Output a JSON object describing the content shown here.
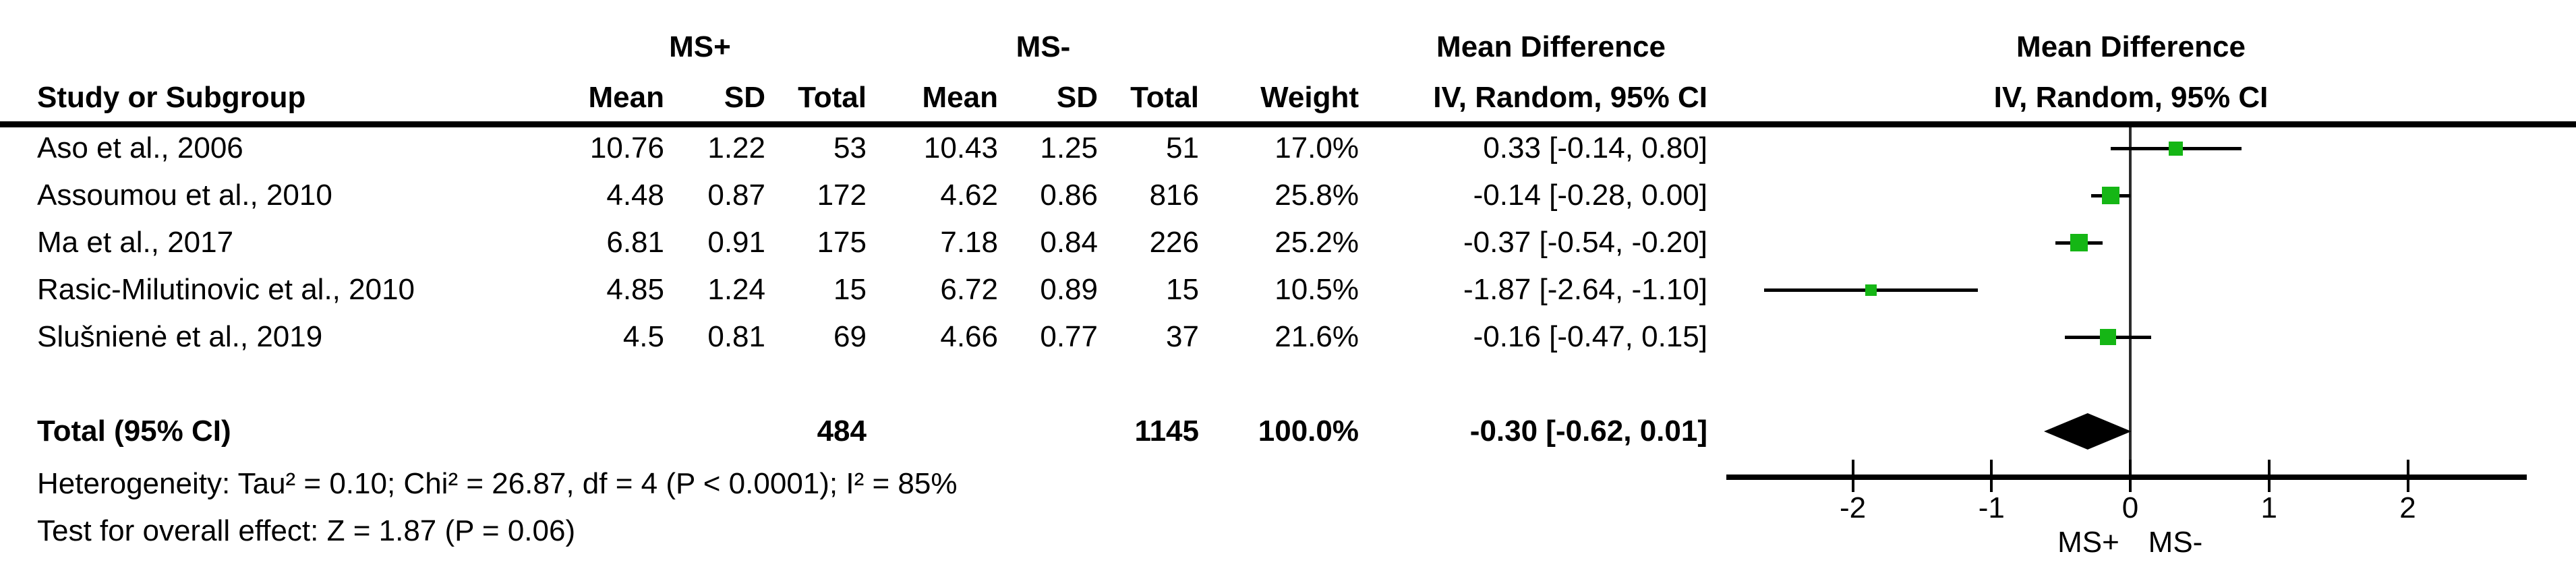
{
  "figure": {
    "background": "#ffffff"
  },
  "table": {
    "header": {
      "study_col": "Study or Subgroup",
      "group1": "MS+",
      "group2": "MS-",
      "mean1": "Mean",
      "sd1": "SD",
      "total1": "Total",
      "mean2": "Mean",
      "sd2": "SD",
      "total2": "Total",
      "weight": "Weight",
      "effect_title": "Mean Difference",
      "effect_subtitle": "IV, Random, 95% CI",
      "plot_title": "Mean Difference",
      "plot_subtitle": "IV, Random, 95% CI"
    },
    "rows": [
      {
        "study": "Aso et al., 2006",
        "mean1": "10.76",
        "sd1": "1.22",
        "total1": "53",
        "mean2": "10.43",
        "sd2": "1.25",
        "total2": "51",
        "weight": "17.0%",
        "ci_text": "0.33 [-0.14, 0.80]"
      },
      {
        "study": "Assoumou et al., 2010",
        "mean1": "4.48",
        "sd1": "0.87",
        "total1": "172",
        "mean2": "4.62",
        "sd2": "0.86",
        "total2": "816",
        "weight": "25.8%",
        "ci_text": "-0.14 [-0.28, 0.00]"
      },
      {
        "study": "Ma et al., 2017",
        "mean1": "6.81",
        "sd1": "0.91",
        "total1": "175",
        "mean2": "7.18",
        "sd2": "0.84",
        "total2": "226",
        "weight": "25.2%",
        "ci_text": "-0.37 [-0.54, -0.20]"
      },
      {
        "study": "Rasic-Milutinovic et al., 2010",
        "mean1": "4.85",
        "sd1": "1.24",
        "total1": "15",
        "mean2": "6.72",
        "sd2": "0.89",
        "total2": "15",
        "weight": "10.5%",
        "ci_text": "-1.87 [-2.64, -1.10]"
      },
      {
        "study": "Slušnienė et al., 2019",
        "mean1": "4.5",
        "sd1": "0.81",
        "total1": "69",
        "mean2": "4.66",
        "sd2": "0.77",
        "total2": "37",
        "weight": "21.6%",
        "ci_text": "-0.16 [-0.47, 0.15]"
      }
    ],
    "total_row": {
      "label": "Total (95% CI)",
      "total1": "484",
      "total2": "1145",
      "weight": "100.0%",
      "ci_text": "-0.30 [-0.62, 0.01]"
    },
    "footnotes": {
      "heterogeneity": "Heterogeneity: Tau² = 0.10; Chi² = 26.87, df = 4 (P < 0.0001); I² = 85%",
      "overall_effect": "Test for overall effect: Z = 1.87 (P = 0.06)"
    }
  },
  "plot": {
    "axis_ticks": [
      "-2",
      "-1",
      "0",
      "1",
      "2"
    ],
    "tick_values": [
      -2,
      -1,
      0,
      1,
      2
    ],
    "left_label": "MS+",
    "right_label": "MS-",
    "marker_color": "#15b615",
    "line_color": "#000000",
    "diamond_color": "#000000"
  },
  "chart_data": {
    "type": "scatter",
    "subtype": "forest-plot-meta-analysis",
    "title": "Mean Difference",
    "method": "IV, Random, 95% CI",
    "group_labels": {
      "experimental": "MS+",
      "control": "MS-"
    },
    "x_ticks": [
      -2,
      -1,
      0,
      1,
      2
    ],
    "xlim": [
      -2.9,
      2.85
    ],
    "favours": {
      "left": "MS+",
      "right": "MS-"
    },
    "studies": [
      {
        "study": "Aso et al., 2006",
        "ms_plus": {
          "mean": 10.76,
          "sd": 1.22,
          "total": 53
        },
        "ms_minus": {
          "mean": 10.43,
          "sd": 1.25,
          "total": 51
        },
        "weight_pct": 17.0,
        "md": 0.33,
        "ci95": [
          -0.14,
          0.8
        ]
      },
      {
        "study": "Assoumou et al., 2010",
        "ms_plus": {
          "mean": 4.48,
          "sd": 0.87,
          "total": 172
        },
        "ms_minus": {
          "mean": 4.62,
          "sd": 0.86,
          "total": 816
        },
        "weight_pct": 25.8,
        "md": -0.14,
        "ci95": [
          -0.28,
          0.0
        ]
      },
      {
        "study": "Ma et al., 2017",
        "ms_plus": {
          "mean": 6.81,
          "sd": 0.91,
          "total": 175
        },
        "ms_minus": {
          "mean": 7.18,
          "sd": 0.84,
          "total": 226
        },
        "weight_pct": 25.2,
        "md": -0.37,
        "ci95": [
          -0.54,
          -0.2
        ]
      },
      {
        "study": "Rasic-Milutinovic et al., 2010",
        "ms_plus": {
          "mean": 4.85,
          "sd": 1.24,
          "total": 15
        },
        "ms_minus": {
          "mean": 6.72,
          "sd": 0.89,
          "total": 15
        },
        "weight_pct": 10.5,
        "md": -1.87,
        "ci95": [
          -2.64,
          -1.1
        ]
      },
      {
        "study": "Slušnienė et al., 2019",
        "ms_plus": {
          "mean": 4.5,
          "sd": 0.81,
          "total": 69
        },
        "ms_minus": {
          "mean": 4.66,
          "sd": 0.77,
          "total": 37
        },
        "weight_pct": 21.6,
        "md": -0.16,
        "ci95": [
          -0.47,
          0.15
        ]
      }
    ],
    "total": {
      "label": "Total (95% CI)",
      "total_ms_plus": 484,
      "total_ms_minus": 1145,
      "weight_pct": 100.0,
      "md": -0.3,
      "ci95": [
        -0.62,
        0.01
      ]
    },
    "heterogeneity": {
      "tau2": 0.1,
      "chi2": 26.87,
      "df": 4,
      "p": "< 0.0001",
      "i2_pct": 85
    },
    "overall_effect": {
      "z": 1.87,
      "p": 0.06
    }
  }
}
